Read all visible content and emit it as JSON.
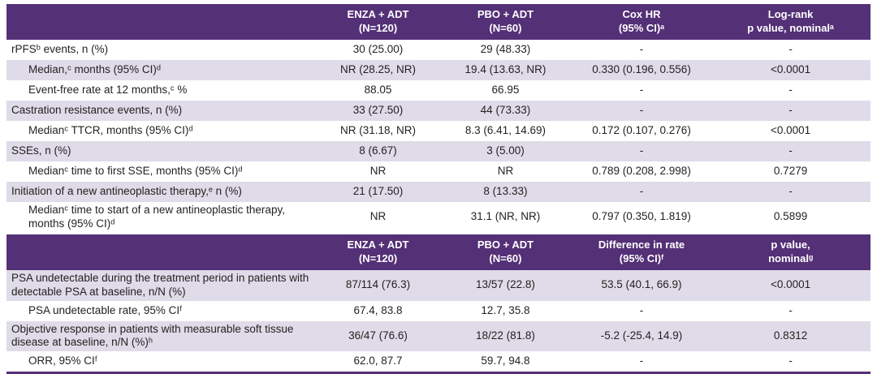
{
  "colors": {
    "header_purple": "#543077",
    "row_lavender": "#dfdbe8",
    "header_text": "#ffffff",
    "body_text": "#231f20"
  },
  "table1": {
    "headers": {
      "label": "",
      "enza": "ENZA + ADT\n(N=120)",
      "pbo": "PBO + ADT\n(N=60)",
      "stat": "Cox HR\n(95% CI)ᵃ",
      "pval": "Log-rank\np value, nominalᵃ"
    },
    "rows": [
      {
        "label": "rPFSᵇ events, n (%)",
        "indent": false,
        "values": [
          "30 (25.00)",
          "29 (48.33)",
          "-",
          "-"
        ]
      },
      {
        "label": "Median,ᶜ months (95% CI)ᵈ",
        "indent": true,
        "values": [
          "NR (28.25, NR)",
          "19.4 (13.63, NR)",
          "0.330 (0.196, 0.556)",
          "<0.0001"
        ]
      },
      {
        "label": "Event-free rate at 12 months,ᶜ %",
        "indent": true,
        "values": [
          "88.05",
          "66.95",
          "-",
          "-"
        ]
      },
      {
        "label": "Castration resistance events, n (%)",
        "indent": false,
        "values": [
          "33 (27.50)",
          "44 (73.33)",
          "-",
          "-"
        ]
      },
      {
        "label": "Medianᶜ TTCR, months (95% CI)ᵈ",
        "indent": true,
        "values": [
          "NR (31.18, NR)",
          "8.3 (6.41, 14.69)",
          "0.172 (0.107, 0.276)",
          "<0.0001"
        ]
      },
      {
        "label": "SSEs, n (%)",
        "indent": false,
        "values": [
          "8 (6.67)",
          "3 (5.00)",
          "-",
          "-"
        ]
      },
      {
        "label": "Medianᶜ time to first SSE, months (95% CI)ᵈ",
        "indent": true,
        "values": [
          "NR",
          "NR",
          "0.789 (0.208, 2.998)",
          "0.7279"
        ]
      },
      {
        "label": "Initiation of a new antineoplastic therapy,ᵉ n (%)",
        "indent": false,
        "values": [
          "21 (17.50)",
          "8 (13.33)",
          "-",
          "-"
        ]
      },
      {
        "label": "Medianᶜ time to start of a new antineoplastic therapy, months (95% CI)ᵈ",
        "indent": true,
        "values": [
          "NR",
          "31.1 (NR, NR)",
          "0.797 (0.350, 1.819)",
          "0.5899"
        ]
      }
    ]
  },
  "table2": {
    "headers": {
      "label": "",
      "enza": "ENZA + ADT\n(N=120)",
      "pbo": "PBO + ADT\n(N=60)",
      "stat": "Difference in rate\n(95% CI)ᶠ",
      "pval": "p value,\nnominalᵍ"
    },
    "rows": [
      {
        "label": "PSA undetectable during the treatment period in patients with detectable PSA at baseline, n/N (%)",
        "indent": false,
        "values": [
          "87/114 (76.3)",
          "13/57 (22.8)",
          "53.5 (40.1, 66.9)",
          "<0.0001"
        ]
      },
      {
        "label": "PSA undetectable rate, 95% CIᶠ",
        "indent": true,
        "values": [
          "67.4, 83.8",
          "12.7, 35.8",
          "-",
          "-"
        ]
      },
      {
        "label": "Objective response in patients with measurable soft tissue disease at baseline, n/N (%)ʰ",
        "indent": false,
        "values": [
          "36/47 (76.6)",
          "18/22 (81.8)",
          "-5.2 (-25.4, 14.9)",
          "0.8312"
        ]
      },
      {
        "label": "ORR, 95% CIᶠ",
        "indent": true,
        "values": [
          "62.0, 87.7",
          "59.7, 94.8",
          "-",
          "-"
        ]
      }
    ]
  }
}
